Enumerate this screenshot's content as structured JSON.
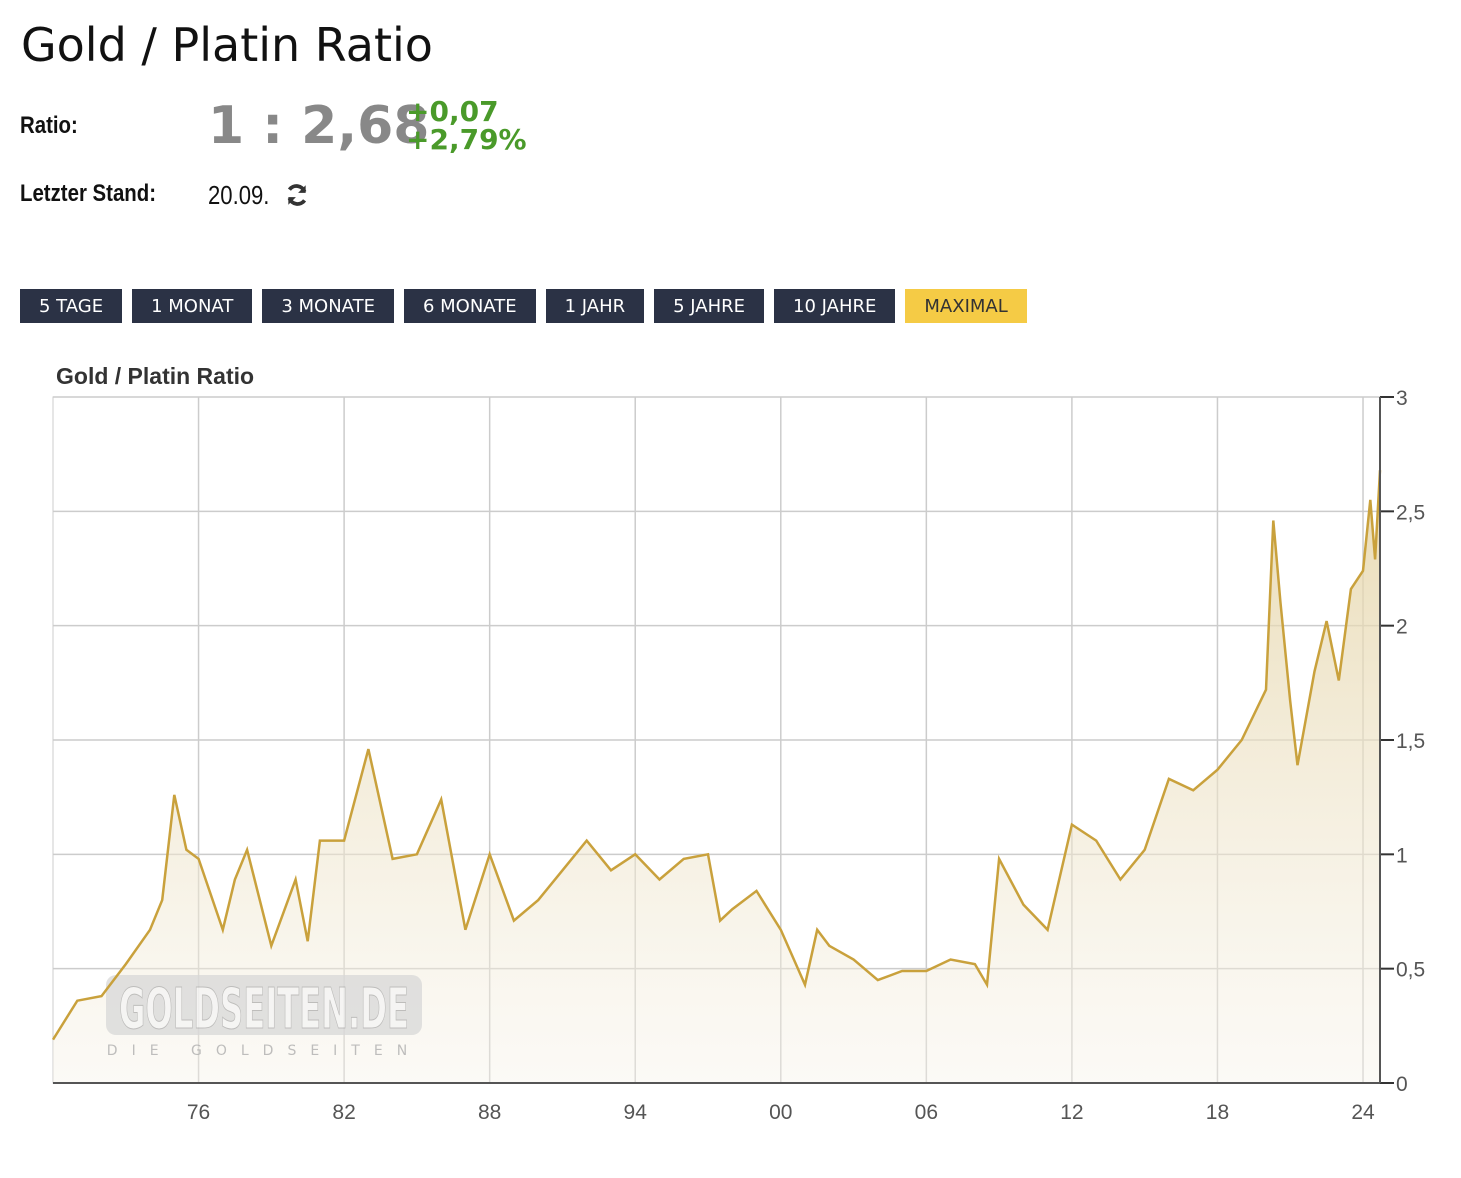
{
  "header": {
    "title": "Gold / Platin Ratio",
    "ratio_label": "Ratio:",
    "ratio_value": "1 : 2,68",
    "change_abs": "+0,07",
    "change_pct": "+2,79%",
    "last_label": "Letzter Stand:",
    "last_value": "20.09.",
    "refresh_icon": "refresh-icon"
  },
  "ranges": [
    {
      "label": "5 TAGE"
    },
    {
      "label": "1 MONAT"
    },
    {
      "label": "3 MONATE"
    },
    {
      "label": "6 MONATE"
    },
    {
      "label": "1 JAHR"
    },
    {
      "label": "5 JAHRE"
    },
    {
      "label": "10 JAHRE"
    },
    {
      "label": "MAXIMAL",
      "active": true
    }
  ],
  "colors": {
    "button": "#2b3245",
    "active": "#f5cb45",
    "line": "#c9a13c",
    "positive": "#4a9a2a"
  },
  "watermark": {
    "brand": "GOLDSEITEN.DE",
    "tagline": "DIE GOLDSEITEN"
  },
  "chart_data": {
    "type": "area",
    "title": "Gold / Platin Ratio",
    "xlim": [
      1970,
      2024.7
    ],
    "ylim": [
      0,
      3
    ],
    "grid": true,
    "x_ticks": [
      {
        "v": 1976,
        "label": "76"
      },
      {
        "v": 1982,
        "label": "82"
      },
      {
        "v": 1988,
        "label": "88"
      },
      {
        "v": 1994,
        "label": "94"
      },
      {
        "v": 2000,
        "label": "00"
      },
      {
        "v": 2006,
        "label": "06"
      },
      {
        "v": 2012,
        "label": "12"
      },
      {
        "v": 2018,
        "label": "18"
      },
      {
        "v": 2024,
        "label": "24"
      }
    ],
    "y_ticks": [
      {
        "v": 0,
        "label": "0"
      },
      {
        "v": 0.5,
        "label": "0,5"
      },
      {
        "v": 1,
        "label": "1"
      },
      {
        "v": 1.5,
        "label": "1,5"
      },
      {
        "v": 2,
        "label": "2"
      },
      {
        "v": 2.5,
        "label": "2,5"
      },
      {
        "v": 3,
        "label": "3"
      }
    ],
    "x": [
      1970,
      1971,
      1972,
      1973,
      1974,
      1974.5,
      1975,
      1975.5,
      1976,
      1977,
      1977.5,
      1978,
      1979,
      1980,
      1980.5,
      1981,
      1982,
      1983,
      1984,
      1985,
      1986,
      1987,
      1988,
      1989,
      1990,
      1991,
      1992,
      1993,
      1994,
      1995,
      1996,
      1997,
      1997.5,
      1998,
      1999,
      2000,
      2001,
      2001.5,
      2002,
      2003,
      2004,
      2005,
      2006,
      2007,
      2008,
      2008.5,
      2009,
      2010,
      2011,
      2012,
      2013,
      2014,
      2015,
      2016,
      2017,
      2018,
      2019,
      2020,
      2020.3,
      2020.6,
      2021,
      2021.3,
      2022,
      2022.5,
      2023,
      2023.5,
      2024,
      2024.3,
      2024.5,
      2024.7
    ],
    "y": [
      0.19,
      0.36,
      0.38,
      0.52,
      0.67,
      0.8,
      1.26,
      1.02,
      0.98,
      0.67,
      0.89,
      1.02,
      0.6,
      0.89,
      0.62,
      1.06,
      1.06,
      1.46,
      0.98,
      1.0,
      1.24,
      0.67,
      1.0,
      0.71,
      0.8,
      0.93,
      1.06,
      0.93,
      1.0,
      0.89,
      0.98,
      1.0,
      0.71,
      0.76,
      0.84,
      0.67,
      0.43,
      0.67,
      0.6,
      0.54,
      0.45,
      0.49,
      0.49,
      0.54,
      0.52,
      0.43,
      0.98,
      0.78,
      0.67,
      1.13,
      1.06,
      0.89,
      1.02,
      1.33,
      1.28,
      1.37,
      1.5,
      1.72,
      2.46,
      2.1,
      1.67,
      1.39,
      1.8,
      2.02,
      1.76,
      2.16,
      2.24,
      2.55,
      2.29,
      2.68
    ]
  }
}
